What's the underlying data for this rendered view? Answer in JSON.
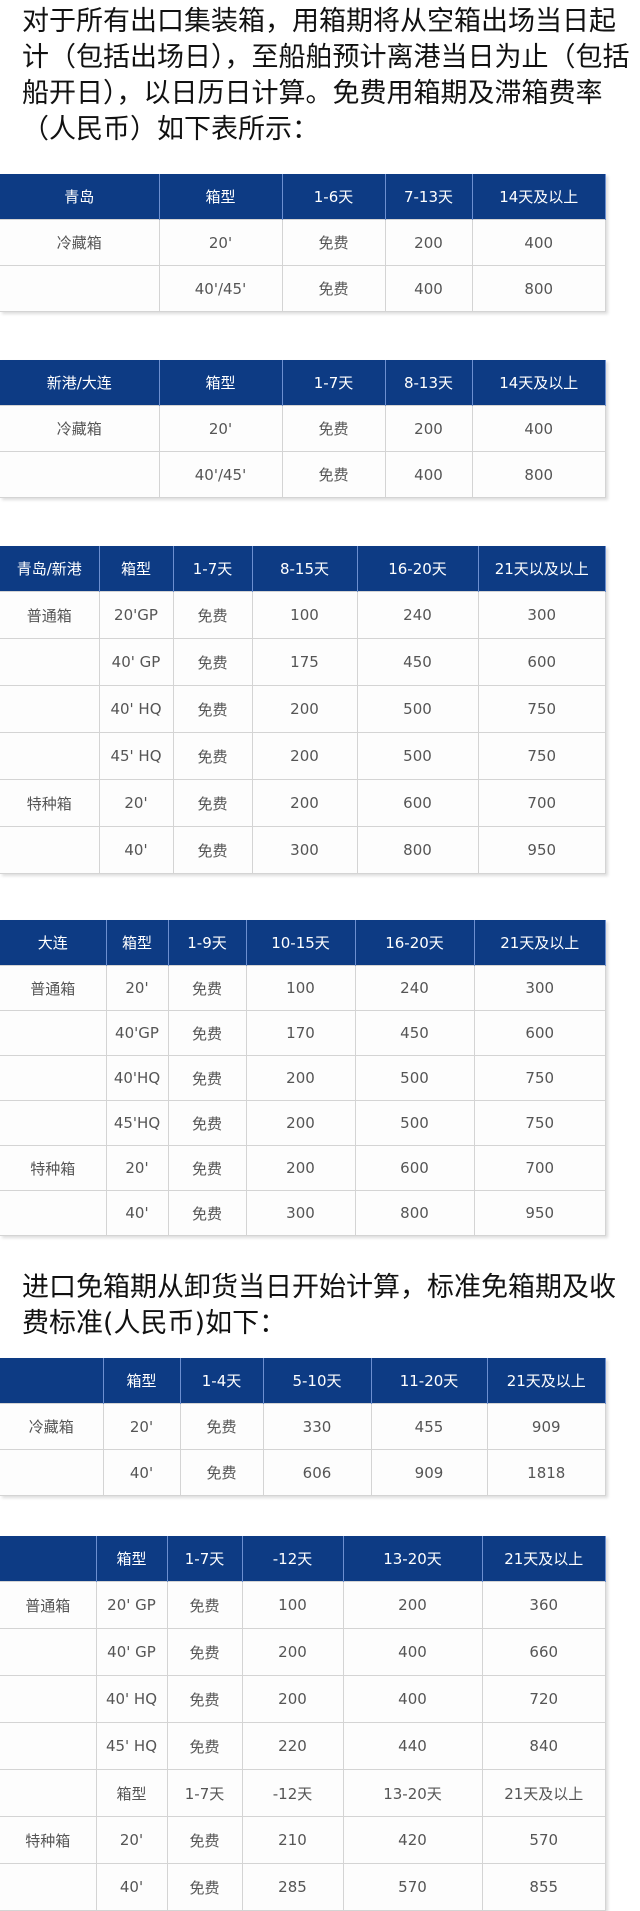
{
  "intro_text": "对于所有出口集装箱，用箱期将从空箱出场当日起计（包括出场日），至船舶预计离港当日为止（包括船开日），以日历日计算。免费用箱期及滞箱费率（人民币）如下表所示：",
  "import_text": "进口免箱期从卸货当日开始计算，标准免箱期及收费标准(人民币)如下：",
  "colors": {
    "header_bg": "#0d3b84",
    "header_text": "#ffffff"
  },
  "tables": [
    {
      "headers": [
        "青岛",
        "箱型",
        "1-6天",
        "7-13天",
        "14天及以上"
      ],
      "rows": [
        [
          "冷藏箱",
          "20'",
          "免费",
          "200",
          "400"
        ],
        [
          "",
          "40'/45'",
          "免费",
          "400",
          "800"
        ]
      ]
    },
    {
      "headers": [
        "新港/大连",
        "箱型",
        "1-7天",
        "8-13天",
        "14天及以上"
      ],
      "rows": [
        [
          "冷藏箱",
          "20'",
          "免费",
          "200",
          "400"
        ],
        [
          "",
          "40'/45'",
          "免费",
          "400",
          "800"
        ]
      ]
    },
    {
      "headers": [
        "青岛/新港",
        "箱型",
        "1-7天",
        "8-15天",
        "16-20天",
        "21天以及以上"
      ],
      "rows": [
        [
          "普通箱",
          "20'GP",
          "免费",
          "100",
          "240",
          "300"
        ],
        [
          "",
          "40' GP",
          "免费",
          "175",
          "450",
          "600"
        ],
        [
          "",
          "40' HQ",
          "免费",
          "200",
          "500",
          "750"
        ],
        [
          "",
          "45' HQ",
          "免费",
          "200",
          "500",
          "750"
        ],
        [
          "特种箱",
          "20'",
          "免费",
          "200",
          "600",
          "700"
        ],
        [
          "",
          "40'",
          "免费",
          "300",
          "800",
          "950"
        ]
      ]
    },
    {
      "headers": [
        "大连",
        "箱型",
        "1-9天",
        "10-15天",
        "16-20天",
        "21天及以上"
      ],
      "rows": [
        [
          "普通箱",
          "20'",
          "免费",
          "100",
          "240",
          "300"
        ],
        [
          "",
          "40'GP",
          "免费",
          "170",
          "450",
          "600"
        ],
        [
          "",
          "40'HQ",
          "免费",
          "200",
          "500",
          "750"
        ],
        [
          "",
          "45'HQ",
          "免费",
          "200",
          "500",
          "750"
        ],
        [
          "特种箱",
          "20'",
          "免费",
          "200",
          "600",
          "700"
        ],
        [
          "",
          "40'",
          "免费",
          "300",
          "800",
          "950"
        ]
      ]
    },
    {
      "headers": [
        "",
        "箱型",
        "1-4天",
        "5-10天",
        "11-20天",
        "21天及以上"
      ],
      "rows": [
        [
          "冷藏箱",
          "20'",
          "免费",
          "330",
          "455",
          "909"
        ],
        [
          "",
          "40'",
          "免费",
          "606",
          "909",
          "1818"
        ]
      ]
    },
    {
      "headers": [
        "",
        "箱型",
        "1-7天",
        "-12天",
        "13-20天",
        "21天及以上"
      ],
      "rows": [
        [
          "普通箱",
          "20' GP",
          "免费",
          "100",
          "200",
          "360"
        ],
        [
          "",
          "40' GP",
          "免费",
          "200",
          "400",
          "660"
        ],
        [
          "",
          "40' HQ",
          "免费",
          "200",
          "400",
          "720"
        ],
        [
          "",
          "45' HQ",
          "免费",
          "220",
          "440",
          "840"
        ],
        [
          "",
          "箱型",
          "1-7天",
          "-12天",
          "13-20天",
          "21天及以上"
        ],
        [
          "特种箱",
          "20'",
          "免费",
          "210",
          "420",
          "570"
        ],
        [
          "",
          "40'",
          "免费",
          "285",
          "570",
          "855"
        ]
      ]
    }
  ]
}
